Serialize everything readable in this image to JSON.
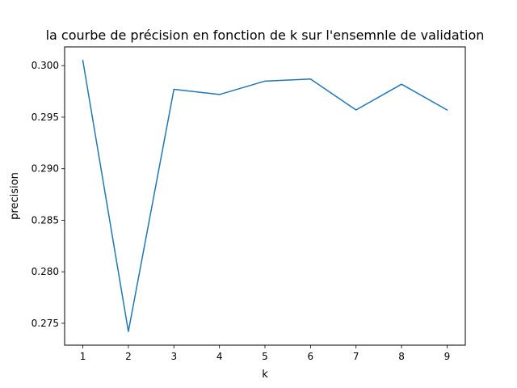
{
  "chart_data": {
    "type": "line",
    "title": "la courbe de précision en fonction de k sur l'ensemnle de validation",
    "xlabel": "k",
    "ylabel": "precision",
    "x": [
      1,
      2,
      3,
      4,
      5,
      6,
      7,
      8,
      9
    ],
    "series": [
      {
        "values": [
          0.3005,
          0.2742,
          0.2977,
          0.2972,
          0.2985,
          0.2987,
          0.2957,
          0.2982,
          0.2957
        ],
        "color": "#1f77b4"
      }
    ],
    "xlim": [
      0.6,
      9.4
    ],
    "ylim": [
      0.27288,
      0.30182
    ],
    "xticks": [
      1,
      2,
      3,
      4,
      5,
      6,
      7,
      8,
      9
    ],
    "xtick_labels": [
      "1",
      "2",
      "3",
      "4",
      "5",
      "6",
      "7",
      "8",
      "9"
    ],
    "yticks": [
      0.275,
      0.28,
      0.285,
      0.29,
      0.295,
      0.3
    ],
    "ytick_labels": [
      "0.275",
      "0.280",
      "0.285",
      "0.290",
      "0.295",
      "0.300"
    ],
    "grid": false,
    "legend": false
  }
}
